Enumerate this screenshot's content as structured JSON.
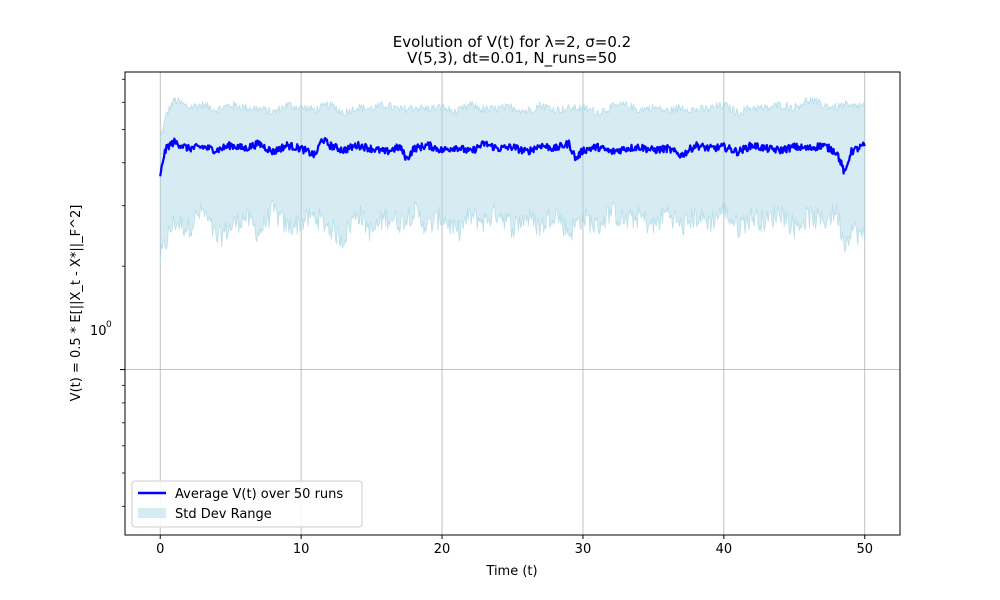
{
  "chart_data": {
    "type": "line",
    "title": "Evolution of V(t) for λ=2, σ=0.2",
    "subtitle": "V(5,3), dt=0.01, N_runs=50",
    "xlabel": "Time (t)",
    "ylabel": "V(t) = 0.5 * E[||X_t - X*||_F^2]",
    "xlim": [
      -2.5,
      52.5
    ],
    "ylim": [
      0.33,
      7.35
    ],
    "yscale": "log",
    "grid": true,
    "x_ticks": [
      0,
      10,
      20,
      30,
      40,
      50
    ],
    "x_tick_labels": [
      "0",
      "10",
      "20",
      "30",
      "40",
      "50"
    ],
    "y_major_ticks": [
      1
    ],
    "y_tick_labels": [
      "10",
      "0"
    ],
    "y_minor_ticks": [
      0.4,
      0.5,
      0.6,
      0.7,
      0.8,
      0.9,
      2,
      3,
      4,
      5,
      6,
      7
    ],
    "series": [
      {
        "name": "Average V(t) over 50 runs",
        "color": "#0000ff",
        "x": [
          0,
          0.25,
          0.5,
          1,
          2,
          3,
          4,
          5,
          6,
          7,
          8,
          9,
          10,
          11,
          11.5,
          12,
          13,
          14,
          15,
          16,
          17,
          17.5,
          18,
          19,
          20,
          21,
          22,
          23,
          24,
          25,
          26,
          27,
          28,
          29,
          29.5,
          30,
          31,
          32,
          33,
          34,
          35,
          36,
          37,
          38,
          39,
          40,
          41,
          42,
          43,
          44,
          45,
          46,
          47,
          48,
          48.6,
          49,
          50
        ],
        "values": [
          3.6,
          4.2,
          4.45,
          4.6,
          4.4,
          4.45,
          4.35,
          4.5,
          4.4,
          4.55,
          4.3,
          4.5,
          4.4,
          4.2,
          4.7,
          4.5,
          4.35,
          4.5,
          4.4,
          4.3,
          4.45,
          4.1,
          4.4,
          4.5,
          4.35,
          4.45,
          4.3,
          4.55,
          4.4,
          4.45,
          4.3,
          4.5,
          4.4,
          4.55,
          4.1,
          4.35,
          4.45,
          4.3,
          4.4,
          4.45,
          4.35,
          4.4,
          4.2,
          4.5,
          4.4,
          4.45,
          4.3,
          4.5,
          4.4,
          4.35,
          4.45,
          4.4,
          4.5,
          4.3,
          3.7,
          4.3,
          4.5
        ]
      },
      {
        "name": "Std Dev Range",
        "color": "#add8e6",
        "x": [
          0,
          0.5,
          1,
          2,
          3,
          4,
          5,
          6,
          7,
          8,
          9,
          10,
          11,
          12,
          13,
          14,
          15,
          16,
          17,
          18,
          19,
          20,
          21,
          22,
          23,
          24,
          25,
          26,
          27,
          28,
          29,
          30,
          31,
          32,
          33,
          34,
          35,
          36,
          37,
          38,
          39,
          40,
          41,
          42,
          43,
          44,
          45,
          46,
          47,
          48,
          48.6,
          49,
          50
        ],
        "upper": [
          4.7,
          5.6,
          6.1,
          5.8,
          5.9,
          5.7,
          5.9,
          5.8,
          5.75,
          5.6,
          5.9,
          5.8,
          5.7,
          5.9,
          5.6,
          5.8,
          5.75,
          5.9,
          5.7,
          5.8,
          5.75,
          5.8,
          5.6,
          5.9,
          5.7,
          5.75,
          5.8,
          5.65,
          5.9,
          5.7,
          5.75,
          5.8,
          5.6,
          5.8,
          5.9,
          5.7,
          5.8,
          5.65,
          5.8,
          5.7,
          5.75,
          5.9,
          5.6,
          5.8,
          5.75,
          5.9,
          5.8,
          6.1,
          5.9,
          5.8,
          5.9,
          5.8,
          5.9
        ],
        "lower": [
          2.1,
          2.4,
          2.7,
          2.6,
          2.9,
          2.4,
          2.6,
          2.8,
          2.5,
          2.9,
          2.6,
          2.7,
          2.8,
          2.6,
          2.4,
          2.9,
          2.5,
          2.8,
          2.7,
          2.9,
          2.6,
          2.8,
          2.5,
          2.8,
          2.7,
          2.9,
          2.6,
          2.8,
          2.6,
          2.9,
          2.5,
          2.8,
          2.6,
          2.9,
          2.7,
          2.8,
          2.6,
          2.9,
          2.6,
          2.8,
          2.7,
          2.9,
          2.6,
          2.8,
          2.7,
          2.9,
          2.6,
          2.8,
          2.7,
          2.9,
          2.3,
          2.6,
          2.4
        ]
      }
    ],
    "legend": {
      "location": "lower-left",
      "entries": [
        "Average V(t) over 50 runs",
        "Std Dev Range"
      ]
    }
  }
}
